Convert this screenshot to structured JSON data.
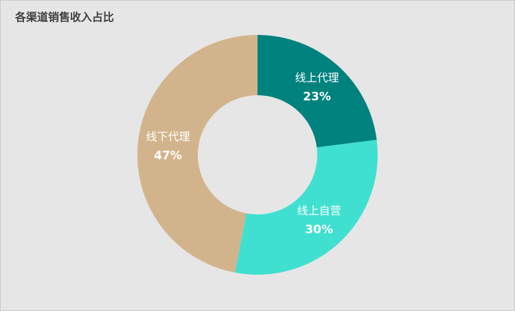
{
  "chart_data": {
    "type": "donut",
    "title": "各渠道销售收入占比",
    "categories": [
      "线上代理",
      "线上自营",
      "线下代理"
    ],
    "values": [
      23,
      30,
      47
    ],
    "value_labels": [
      "23%",
      "30%",
      "47%"
    ],
    "colors": [
      "#00827f",
      "#40e0d0",
      "#d2b48c"
    ]
  }
}
